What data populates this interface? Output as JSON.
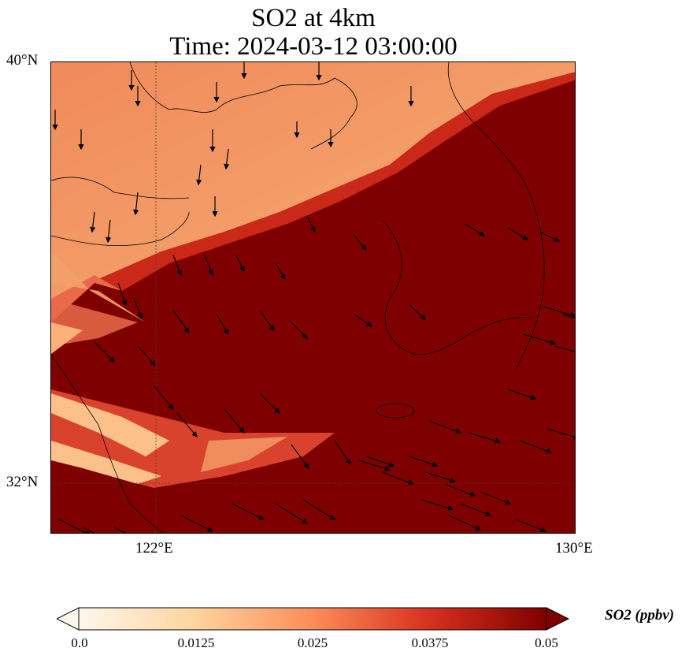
{
  "title": {
    "line1": "SO2 at 4km",
    "line2": "Time: 2024-03-12 03:00:00"
  },
  "axes": {
    "lat_labels": [
      "40°N",
      "32°N"
    ],
    "lon_labels": [
      "122°E",
      "130°E"
    ]
  },
  "colorbar": {
    "label": "SO2 (ppbv)",
    "ticks": [
      "0.0",
      "0.0125",
      "0.025",
      "0.0375",
      "0.05"
    ],
    "colormap": "OrRd",
    "range": [
      0.0,
      0.05
    ],
    "extend": "both"
  },
  "colors": {
    "high": "#7f0000",
    "mid": "#e34a33",
    "low": "#fdd49e",
    "land_outline": "#000000"
  }
}
